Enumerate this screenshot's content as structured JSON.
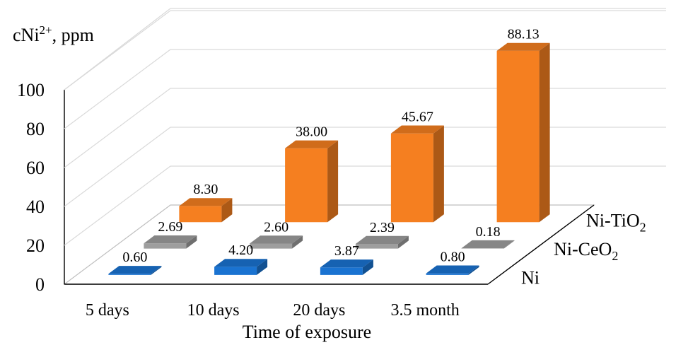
{
  "chart_data": {
    "type": "bar",
    "subtype": "3d-column",
    "categories": [
      "5 days",
      "10 days",
      "20 days",
      "3.5 month"
    ],
    "series": [
      {
        "name": "Ni",
        "values": [
          0.6,
          4.2,
          3.87,
          0.8
        ],
        "labels": [
          "0.60",
          "4.20",
          "3.87",
          "0.80"
        ],
        "color": "#1a73d1"
      },
      {
        "name": "Ni-CeO2",
        "name_base": "Ni-CeO",
        "name_sub": "2",
        "values": [
          2.69,
          2.6,
          2.39,
          0.18
        ],
        "labels": [
          "2.69",
          "2.60",
          "2.39",
          "0.18"
        ],
        "color": "#9e9e9e"
      },
      {
        "name": "Ni-TiO2",
        "name_base": "Ni-TiO",
        "name_sub": "2",
        "values": [
          8.3,
          38.0,
          45.67,
          88.13
        ],
        "labels": [
          "8.30",
          "38.00",
          "45.67",
          "88.13"
        ],
        "color": "#f57f20"
      }
    ],
    "xlabel": "Time of exposure",
    "ylabel": {
      "base": "cNi",
      "sup": "2+",
      "tail": ", ppm"
    },
    "ylim": [
      0,
      100
    ],
    "yticks": [
      "0",
      "20",
      "40",
      "60",
      "80",
      "100"
    ],
    "grid": true,
    "legend": "series-depth-axis-right"
  }
}
